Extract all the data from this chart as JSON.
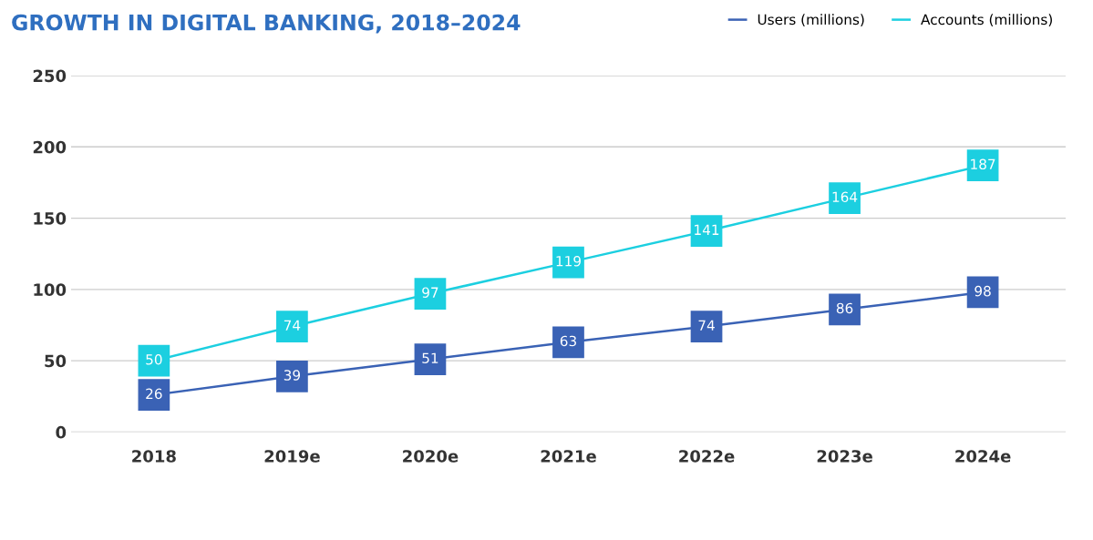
{
  "chart_data": {
    "type": "line",
    "title": "GROWTH IN DIGITAL BANKING, 2018–2024",
    "categories": [
      "2018",
      "2019e",
      "2020e",
      "2021e",
      "2022e",
      "2023e",
      "2024e"
    ],
    "series": [
      {
        "name": "Users (millions)",
        "color": "#3a62b5",
        "values": [
          26,
          39,
          51,
          63,
          74,
          86,
          98
        ]
      },
      {
        "name": "Accounts (millions)",
        "color": "#1ccfe0",
        "values": [
          50,
          74,
          97,
          119,
          141,
          164,
          187
        ]
      }
    ],
    "ylim": [
      0,
      250
    ],
    "yticks": [
      0,
      50,
      100,
      150,
      200,
      250
    ],
    "grid": "y",
    "legend": "top right",
    "marker": "square",
    "line_style": "solid",
    "data_labels": true
  }
}
